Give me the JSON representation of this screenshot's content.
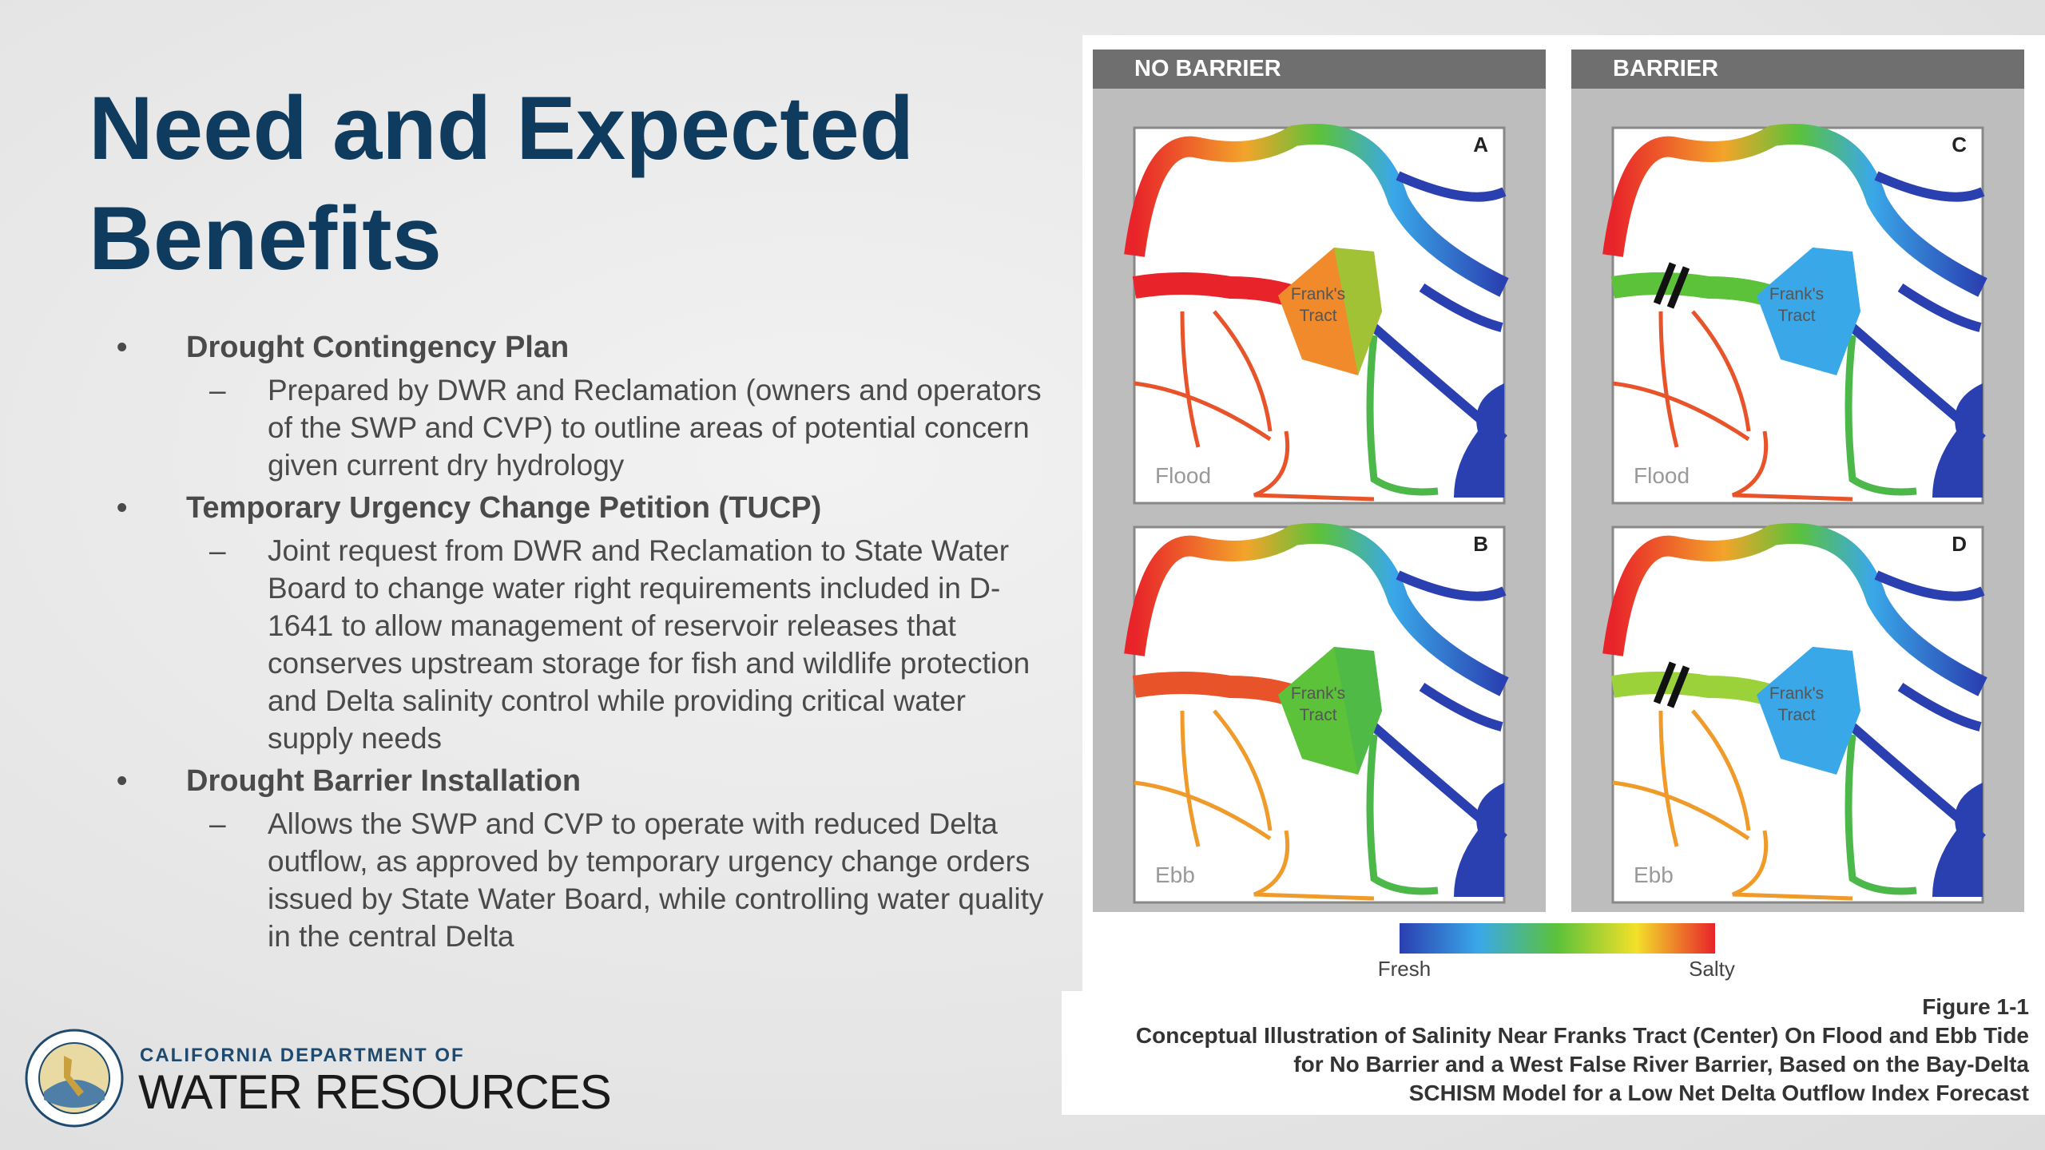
{
  "slide": {
    "title": [
      "Need and Expected",
      "Benefits"
    ],
    "bullets": [
      {
        "heading": "Drought Contingency Plan",
        "items": [
          "Prepared by DWR and Reclamation (owners and operators of the SWP and CVP) to outline areas of potential concern given current dry hydrology"
        ]
      },
      {
        "heading": "Temporary Urgency Change Petition (TUCP)",
        "items": [
          "Joint request from DWR and Reclamation to State Water Board to change water right requirements included in D-1641 to allow management of reservoir releases that conserves upstream storage for fish and wildlife protection and Delta salinity control while providing critical water supply needs"
        ]
      },
      {
        "heading": "Drought Barrier Installation",
        "items": [
          "Allows the SWP and CVP to operate with reduced Delta outflow, as approved by temporary urgency change orders issued by State Water Board, while controlling water quality in the central Delta"
        ]
      }
    ]
  },
  "figure": {
    "columns": [
      {
        "header": "NO BARRIER",
        "panels": [
          {
            "letter": "A",
            "tide": "Flood",
            "tract": [
              "Frank's",
              "Tract"
            ]
          },
          {
            "letter": "B",
            "tide": "Ebb",
            "tract": [
              "Frank's",
              "Tract"
            ]
          }
        ]
      },
      {
        "header": "BARRIER",
        "panels": [
          {
            "letter": "C",
            "tide": "Flood",
            "tract": [
              "Frank's",
              "Tract"
            ]
          },
          {
            "letter": "D",
            "tide": "Ebb",
            "tract": [
              "Frank's",
              "Tract"
            ]
          }
        ]
      }
    ],
    "legend": {
      "low": "Fresh",
      "high": "Salty"
    },
    "caption": [
      "Figure 1-1",
      "Conceptual Illustration of Salinity Near Franks Tract (Center) On Flood and Ebb Tide",
      "for No Barrier and a West False River Barrier, Based on the Bay-Delta",
      "SCHISM Model for a Low Net Delta Outflow Index Forecast"
    ]
  },
  "logo": {
    "line1": "CALIFORNIA DEPARTMENT OF",
    "line2": "WATER RESOURCES"
  }
}
